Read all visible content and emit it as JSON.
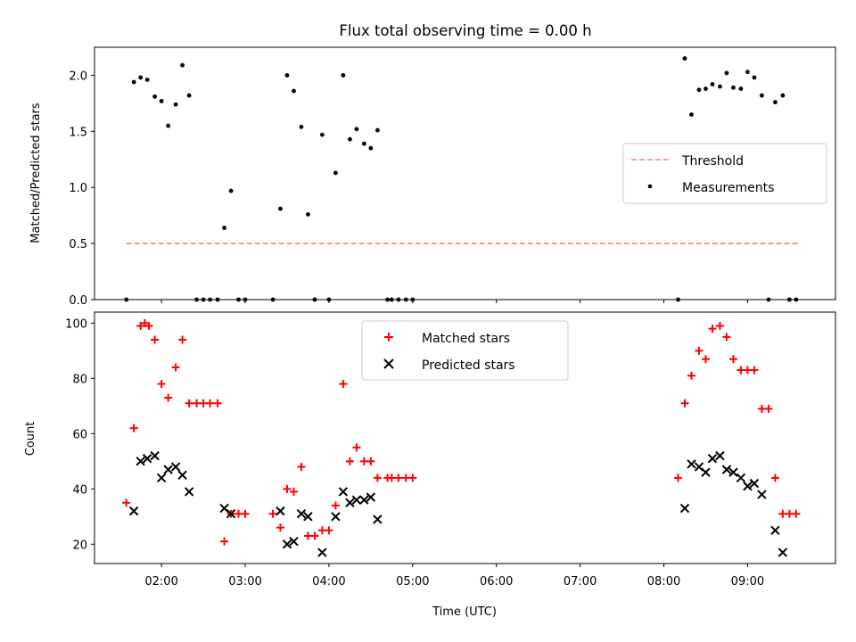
{
  "chart_data": [
    {
      "type": "scatter",
      "title": "Flux total observing time = 0.00 h",
      "xlabel": "",
      "ylabel": "Matched/Predicted stars",
      "xlim": [
        1.2,
        10.05
      ],
      "ylim": [
        0,
        2.25
      ],
      "yticks": [
        0.0,
        0.5,
        1.0,
        1.5,
        2.0
      ],
      "ytick_labels": [
        "0.0",
        "0.5",
        "1.0",
        "1.5",
        "2.0"
      ],
      "legend_position": "center-right",
      "legend": [
        "Threshold",
        "Measurements"
      ],
      "threshold": {
        "name": "Threshold",
        "color": "#ff8080",
        "x": [
          1.58,
          9.6
        ],
        "value": 0.5
      },
      "series": [
        {
          "name": "Measurements",
          "color": "#000000",
          "x": [
            1.58,
            1.67,
            1.75,
            1.83,
            1.92,
            2.0,
            2.08,
            2.17,
            2.25,
            2.33,
            2.42,
            2.5,
            2.58,
            2.67,
            2.75,
            2.83,
            2.92,
            3.0,
            3.33,
            3.42,
            3.5,
            3.58,
            3.67,
            3.75,
            3.83,
            3.92,
            4.0,
            4.08,
            4.17,
            4.25,
            4.33,
            4.42,
            4.5,
            4.58,
            4.7,
            4.75,
            4.83,
            4.92,
            5.0,
            8.17,
            8.25,
            8.33,
            8.42,
            8.5,
            8.58,
            8.67,
            8.75,
            8.83,
            8.92,
            9.0,
            9.08,
            9.17,
            9.25,
            9.33,
            9.42,
            9.5,
            9.58
          ],
          "y": [
            0.0,
            1.94,
            1.98,
            1.96,
            1.81,
            1.77,
            1.55,
            1.74,
            2.09,
            1.82,
            0.0,
            0.0,
            0.0,
            0.0,
            0.64,
            0.97,
            0.0,
            0.0,
            0.0,
            0.81,
            2.0,
            1.86,
            1.54,
            0.76,
            0.0,
            1.47,
            0.0,
            1.13,
            2.0,
            1.43,
            1.52,
            1.39,
            1.35,
            1.51,
            0.0,
            0.0,
            0.0,
            0.0,
            0.0,
            0.0,
            2.15,
            1.65,
            1.87,
            1.88,
            1.92,
            1.9,
            2.02,
            1.89,
            1.88,
            2.03,
            1.98,
            1.82,
            0.0,
            1.76,
            1.82,
            0.0,
            0.0
          ]
        }
      ]
    },
    {
      "type": "scatter",
      "title": "",
      "xlabel": "Time (UTC)",
      "ylabel": "Count",
      "xlim": [
        1.2,
        10.05
      ],
      "ylim": [
        13,
        104
      ],
      "xticks": [
        2,
        3,
        4,
        5,
        6,
        7,
        8,
        9
      ],
      "xtick_labels": [
        "02:00",
        "03:00",
        "04:00",
        "05:00",
        "06:00",
        "07:00",
        "08:00",
        "09:00"
      ],
      "yticks": [
        20,
        40,
        60,
        80,
        100
      ],
      "ytick_labels": [
        "20",
        "40",
        "60",
        "80",
        "100"
      ],
      "legend_position": "top-center",
      "legend": [
        "Matched stars",
        "Predicted stars"
      ],
      "series": [
        {
          "name": "Matched stars",
          "marker": "plus",
          "color": "#ff0000",
          "x": [
            1.58,
            1.67,
            1.75,
            1.8,
            1.85,
            1.92,
            2.0,
            2.08,
            2.17,
            2.25,
            2.33,
            2.42,
            2.5,
            2.58,
            2.67,
            2.75,
            2.83,
            2.92,
            3.0,
            3.33,
            3.42,
            3.5,
            3.58,
            3.67,
            3.75,
            3.83,
            3.92,
            4.0,
            4.08,
            4.17,
            4.25,
            4.33,
            4.42,
            4.5,
            4.58,
            4.7,
            4.75,
            4.83,
            4.92,
            5.0,
            8.17,
            8.25,
            8.33,
            8.42,
            8.5,
            8.58,
            8.67,
            8.75,
            8.83,
            8.92,
            9.0,
            9.08,
            9.17,
            9.25,
            9.33,
            9.42,
            9.5,
            9.58
          ],
          "y": [
            35,
            62,
            99,
            100,
            99,
            94,
            78,
            73,
            84,
            94,
            71,
            71,
            71,
            71,
            71,
            21,
            31,
            31,
            31,
            31,
            26,
            40,
            39,
            48,
            23,
            23,
            25,
            25,
            34,
            78,
            50,
            55,
            50,
            50,
            44,
            44,
            44,
            44,
            44,
            44,
            44,
            71,
            81,
            90,
            87,
            98,
            99,
            95,
            87,
            83,
            83,
            83,
            69,
            69,
            44,
            31,
            31,
            31
          ]
        },
        {
          "name": "Predicted stars",
          "marker": "x",
          "color": "#000000",
          "x": [
            1.67,
            1.75,
            1.83,
            1.92,
            2.0,
            2.08,
            2.17,
            2.25,
            2.33,
            2.75,
            2.83,
            3.42,
            3.5,
            3.58,
            3.67,
            3.75,
            3.92,
            4.08,
            4.17,
            4.25,
            4.33,
            4.42,
            4.5,
            4.58,
            8.25,
            8.33,
            8.42,
            8.5,
            8.58,
            8.67,
            8.75,
            8.83,
            8.92,
            9.0,
            9.08,
            9.17,
            9.33,
            9.42
          ],
          "y": [
            32,
            50,
            51,
            52,
            44,
            47,
            48,
            45,
            39,
            33,
            31,
            32,
            20,
            21,
            31,
            30,
            17,
            30,
            39,
            35,
            36,
            36,
            37,
            29,
            33,
            49,
            48,
            46,
            51,
            52,
            47,
            46,
            44,
            41,
            42,
            38,
            25,
            17
          ]
        }
      ]
    }
  ]
}
